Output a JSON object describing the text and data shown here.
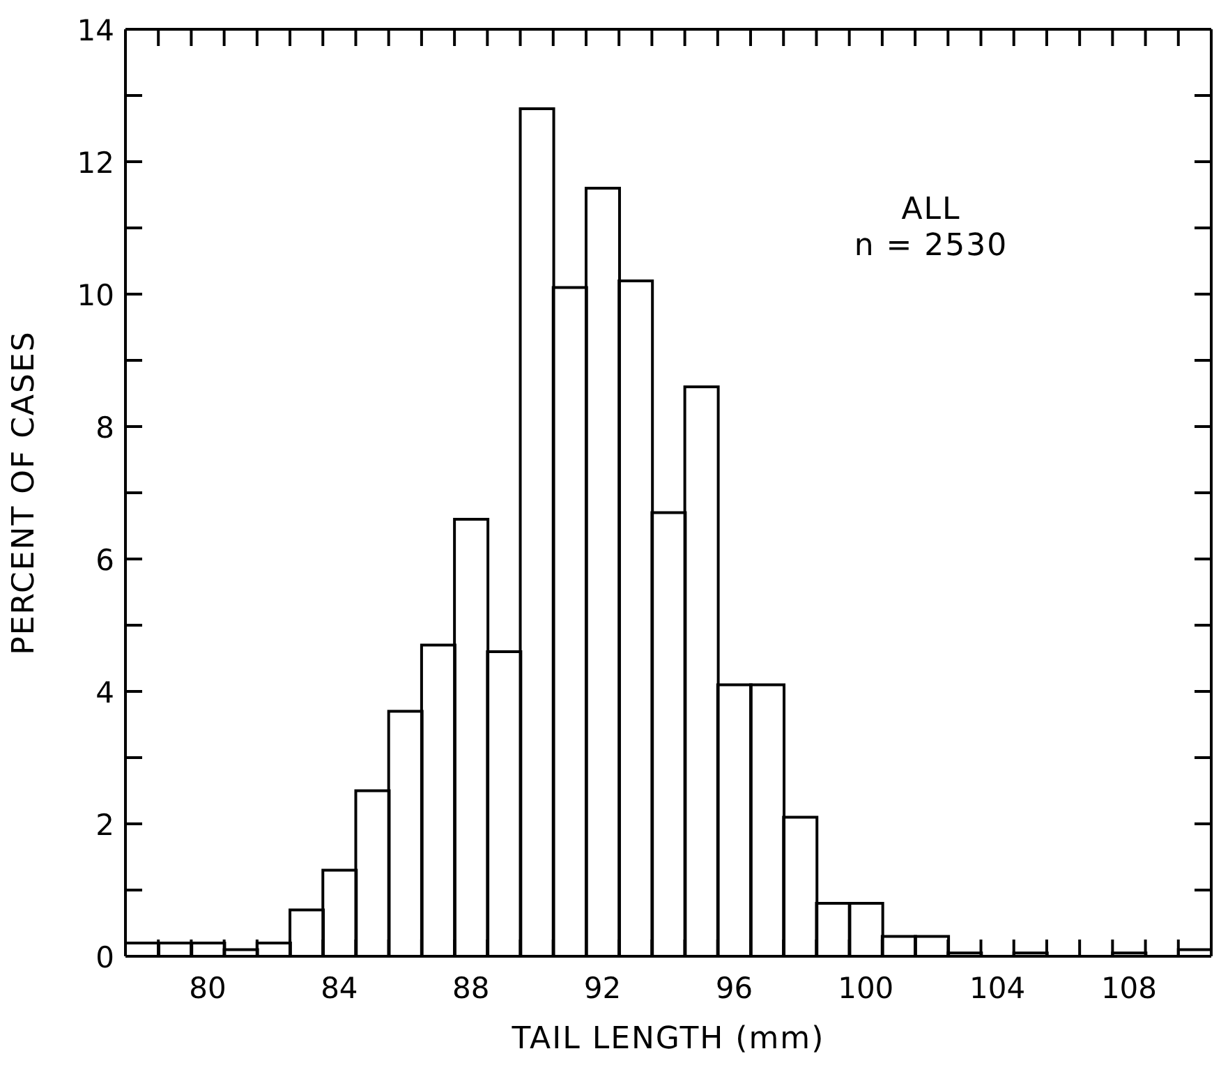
{
  "chart_data": {
    "type": "histogram",
    "xlabel": "TAIL LENGTH (mm)",
    "ylabel": "PERCENT OF CASES",
    "color": "#000000",
    "annotations": [
      "ALL",
      "n = 2530"
    ],
    "bins": [
      77.5,
      78.5,
      79.5,
      80.5,
      81.5,
      82.5,
      83.5,
      84.5,
      85.5,
      86.5,
      87.5,
      88.5,
      89.5,
      90.5,
      91.5,
      92.5,
      93.5,
      94.5,
      95.5,
      96.5,
      97.5,
      98.5,
      99.5,
      100.5,
      101.5,
      102.5,
      103.5,
      104.5,
      105.5,
      106.5,
      107.5,
      108.5,
      109.5,
      110.5
    ],
    "values": [
      0.2,
      0.2,
      0.2,
      0.1,
      0.2,
      0.7,
      1.3,
      2.5,
      3.7,
      4.7,
      6.6,
      4.6,
      12.8,
      10.1,
      11.6,
      10.2,
      6.7,
      8.6,
      4.1,
      4.1,
      2.1,
      0.8,
      0.8,
      0.3,
      0.3,
      0.05,
      0,
      0.05,
      0,
      0,
      0.05,
      0,
      0.1
    ],
    "xlim": [
      77.5,
      110.5
    ],
    "ylim": [
      0,
      14
    ],
    "xticks": [
      {
        "value": 78.5,
        "label": null
      },
      {
        "value": 79.5,
        "label": null
      },
      {
        "value": 80,
        "label": "80"
      },
      {
        "value": 80.5,
        "label": null
      },
      {
        "value": 81.5,
        "label": null
      },
      {
        "value": 82.5,
        "label": null
      },
      {
        "value": 83.5,
        "label": null
      },
      {
        "value": 84,
        "label": "84"
      },
      {
        "value": 84.5,
        "label": null
      },
      {
        "value": 85.5,
        "label": null
      },
      {
        "value": 86.5,
        "label": null
      },
      {
        "value": 87.5,
        "label": null
      },
      {
        "value": 88,
        "label": "88"
      },
      {
        "value": 88.5,
        "label": null
      },
      {
        "value": 89.5,
        "label": null
      },
      {
        "value": 90.5,
        "label": null
      },
      {
        "value": 91.5,
        "label": null
      },
      {
        "value": 92,
        "label": "92"
      },
      {
        "value": 92.5,
        "label": null
      },
      {
        "value": 93.5,
        "label": null
      },
      {
        "value": 94.5,
        "label": null
      },
      {
        "value": 95.5,
        "label": null
      },
      {
        "value": 96,
        "label": "96"
      },
      {
        "value": 96.5,
        "label": null
      },
      {
        "value": 97.5,
        "label": null
      },
      {
        "value": 98.5,
        "label": null
      },
      {
        "value": 99.5,
        "label": null
      },
      {
        "value": 100,
        "label": "100"
      },
      {
        "value": 100.5,
        "label": null
      },
      {
        "value": 101.5,
        "label": null
      },
      {
        "value": 102.5,
        "label": null
      },
      {
        "value": 103.5,
        "label": null
      },
      {
        "value": 104,
        "label": "104"
      },
      {
        "value": 104.5,
        "label": null
      },
      {
        "value": 105.5,
        "label": null
      },
      {
        "value": 106.5,
        "label": null
      },
      {
        "value": 107.5,
        "label": null
      },
      {
        "value": 108,
        "label": "108"
      },
      {
        "value": 108.5,
        "label": null
      },
      {
        "value": 109.5,
        "label": null
      }
    ],
    "yticks": [
      0,
      {
        "value": 1,
        "label": null
      },
      2,
      {
        "value": 3,
        "label": null
      },
      4,
      {
        "value": 5,
        "label": null
      },
      6,
      {
        "value": 7,
        "label": null
      },
      8,
      {
        "value": 9,
        "label": null
      },
      10,
      {
        "value": 11,
        "label": null
      },
      12,
      {
        "value": 13,
        "label": null
      },
      14
    ]
  }
}
